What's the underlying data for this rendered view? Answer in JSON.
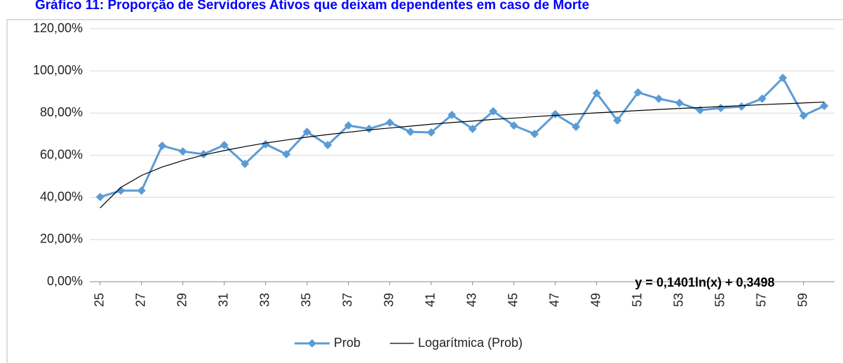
{
  "chart_data": {
    "type": "line",
    "title": "Gráfico 11:      Proporção de Servidores Ativos que deixam dependentes em caso de Morte",
    "x": [
      25,
      26,
      27,
      28,
      29,
      30,
      31,
      32,
      33,
      34,
      35,
      36,
      37,
      38,
      39,
      40,
      41,
      42,
      43,
      44,
      45,
      46,
      47,
      48,
      49,
      50,
      51,
      52,
      53,
      54,
      55,
      56,
      57,
      58,
      59,
      60
    ],
    "xlim": [
      24.5,
      60.5
    ],
    "xticks": [
      25,
      27,
      29,
      31,
      33,
      35,
      37,
      39,
      41,
      43,
      45,
      47,
      49,
      51,
      53,
      55,
      57,
      59
    ],
    "ylim": [
      0,
      120
    ],
    "yticks": [
      {
        "value": 0,
        "label": "0,00%"
      },
      {
        "value": 20,
        "label": "20,00%"
      },
      {
        "value": 40,
        "label": "40,00%"
      },
      {
        "value": 60,
        "label": "60,00%"
      },
      {
        "value": 80,
        "label": "80,00%"
      },
      {
        "value": 100,
        "label": "100,00%"
      },
      {
        "value": 120,
        "label": "120,00%"
      }
    ],
    "grid": true,
    "legend": "bottom",
    "series": [
      {
        "name": "Prob",
        "color": "#5b9bd5",
        "marker": "diamond",
        "values": [
          40.2,
          43.2,
          43.2,
          64.5,
          61.8,
          60.5,
          64.8,
          55.9,
          65.2,
          60.5,
          71.1,
          64.8,
          74.1,
          72.5,
          75.5,
          71.1,
          70.8,
          79.1,
          72.5,
          80.8,
          74.1,
          70.1,
          79.5,
          73.5,
          89.4,
          76.5,
          89.8,
          86.8,
          84.8,
          81.4,
          82.4,
          83.1,
          86.8,
          96.7,
          78.8,
          83.4
        ]
      },
      {
        "name": "Logarítmica (Prob)",
        "color": "#000000",
        "marker": "none",
        "values": [
          35.0,
          44.7,
          50.4,
          54.4,
          57.5,
          60.1,
          62.2,
          64.1,
          65.8,
          67.2,
          68.6,
          69.8,
          70.9,
          72.0,
          72.9,
          73.8,
          74.7,
          75.5,
          76.2,
          77.0,
          77.6,
          78.3,
          78.9,
          79.5,
          80.1,
          80.6,
          81.2,
          81.7,
          82.2,
          82.6,
          83.1,
          83.5,
          84.0,
          84.4,
          84.8,
          85.2
        ]
      }
    ],
    "annotation": "y = 0,1401ln(x) + 0,3498"
  }
}
